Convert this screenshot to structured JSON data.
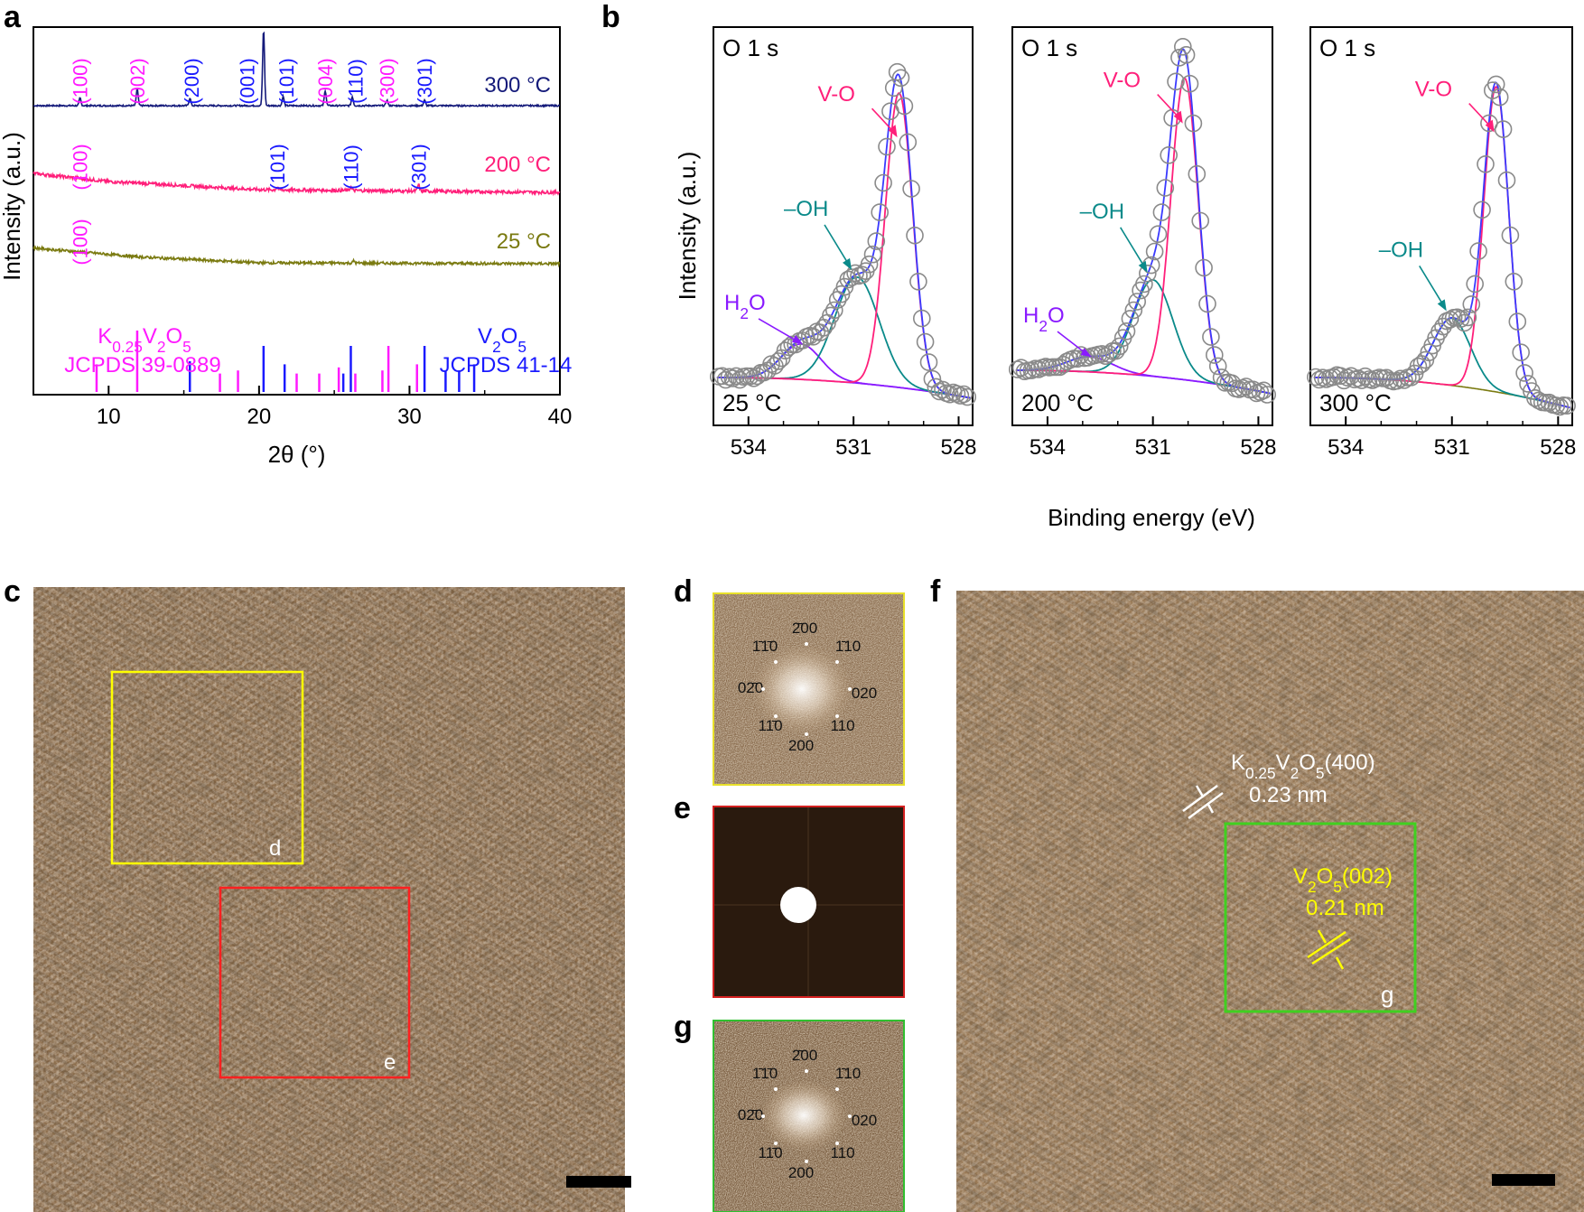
{
  "panels": {
    "a": "a",
    "b": "b",
    "c": "c",
    "d": "d",
    "e": "e",
    "f": "f",
    "g": "g"
  },
  "colors": {
    "magenta": "#ff1aff",
    "blue": "#1a1aff",
    "navy": "#141a7a",
    "pink": "#ff1f7a",
    "olive": "#7a7a10",
    "teal": "#0a8a8a",
    "violet": "#8a1aff",
    "hrtem": "#8a6b4a"
  },
  "chart_data": [
    {
      "id": "a",
      "type": "line",
      "xlabel": "2θ (°)",
      "ylabel": "Intensity (a.u.)",
      "xlim": [
        5,
        40
      ],
      "xticks": [
        10,
        20,
        30,
        40
      ],
      "series": [
        {
          "name": "300 °C",
          "color": "#141a7a",
          "offset": 0,
          "baseline": [
            [
              5,
              0.0
            ],
            [
              40,
              0.0
            ]
          ],
          "peaks": [
            [
              8.1,
              0.1
            ],
            [
              11.9,
              0.22
            ],
            [
              15.4,
              0.1
            ],
            [
              20.3,
              1.0
            ],
            [
              21.6,
              0.12
            ],
            [
              24.4,
              0.2
            ],
            [
              26.2,
              0.12
            ],
            [
              28.5,
              0.07
            ],
            [
              31.0,
              0.07
            ]
          ]
        },
        {
          "name": "200 °C",
          "color": "#ff1f7a",
          "offset": 1,
          "baseline": [
            [
              5,
              0.35
            ],
            [
              10,
              0.2
            ],
            [
              20,
              0.05
            ],
            [
              40,
              0.0
            ]
          ],
          "peaks": [
            [
              21.2,
              0.05
            ],
            [
              26.1,
              0.06
            ],
            [
              30.6,
              0.12
            ]
          ]
        },
        {
          "name": "25 °C",
          "color": "#7a7a10",
          "offset": 2,
          "baseline": [
            [
              5,
              0.35
            ],
            [
              12,
              0.15
            ],
            [
              20,
              0.02
            ],
            [
              40,
              0.0
            ]
          ],
          "peaks": [
            [
              26.3,
              0.05
            ]
          ]
        }
      ],
      "reference": {
        "K0.25V2O5": {
          "label_line1": "K0.25V2O5",
          "label_line2": "JCPDS 39-0889",
          "color": "#ff1aff",
          "lines": [
            [
              9.2,
              0.45
            ],
            [
              11.9,
              1.0
            ],
            [
              17.4,
              0.3
            ],
            [
              18.6,
              0.35
            ],
            [
              22.5,
              0.3
            ],
            [
              24.0,
              0.3
            ],
            [
              25.3,
              0.4
            ],
            [
              26.4,
              0.3
            ],
            [
              28.2,
              0.35
            ],
            [
              28.6,
              0.75
            ],
            [
              30.5,
              0.45
            ]
          ]
        },
        "V2O5": {
          "label_line1": "V2O5",
          "label_line2": "JCPDS 41-14",
          "color": "#1a1aff",
          "lines": [
            [
              15.4,
              0.5
            ],
            [
              20.3,
              0.75
            ],
            [
              21.7,
              0.45
            ],
            [
              25.6,
              0.3
            ],
            [
              26.1,
              0.75
            ],
            [
              31.0,
              0.75
            ],
            [
              32.4,
              0.35
            ],
            [
              33.3,
              0.35
            ],
            [
              34.3,
              0.45
            ]
          ]
        }
      },
      "peak_labels": [
        {
          "row": 0,
          "x": 8.1,
          "text": "(100)",
          "color": "#ff1aff"
        },
        {
          "row": 0,
          "x": 11.9,
          "text": "(002)",
          "color": "#ff1aff"
        },
        {
          "row": 0,
          "x": 15.5,
          "text": "(200)",
          "color": "#1a1aff"
        },
        {
          "row": 0,
          "x": 19.2,
          "text": "(001)",
          "color": "#1a1aff"
        },
        {
          "row": 0,
          "x": 21.8,
          "text": "(101)",
          "color": "#1a1aff"
        },
        {
          "row": 0,
          "x": 24.4,
          "text": "(004)",
          "color": "#ff1aff"
        },
        {
          "row": 0,
          "x": 26.4,
          "text": "(110)",
          "color": "#1a1aff"
        },
        {
          "row": 0,
          "x": 28.5,
          "text": "(300)",
          "color": "#ff1aff"
        },
        {
          "row": 0,
          "x": 31.0,
          "text": "(301)",
          "color": "#1a1aff"
        },
        {
          "row": 1,
          "x": 8.1,
          "text": "(100)",
          "color": "#ff1aff"
        },
        {
          "row": 1,
          "x": 21.2,
          "text": "(101)",
          "color": "#1a1aff"
        },
        {
          "row": 1,
          "x": 26.1,
          "text": "(110)",
          "color": "#1a1aff"
        },
        {
          "row": 1,
          "x": 30.6,
          "text": "(301)",
          "color": "#1a1aff"
        },
        {
          "row": 2,
          "x": 8.1,
          "text": "(100)",
          "color": "#ff1aff"
        }
      ]
    },
    {
      "id": "b",
      "type": "line",
      "xlabel": "Binding energy (eV)",
      "ylabel": "Intensity (a.u.)",
      "xlim": [
        535,
        527.6
      ],
      "xticks": [
        534,
        531,
        528
      ],
      "subpanels": [
        {
          "title": "O 1 s",
          "temp": "25 °C",
          "voh": {
            "center": 529.7,
            "amp": 1.0,
            "width": 0.55
          },
          "oh": {
            "center": 530.9,
            "amp": 0.36,
            "width": 0.9
          },
          "h2o": {
            "center": 532.5,
            "amp": 0.12,
            "width": 0.8
          },
          "labels": {
            "vo": "V-O",
            "oh": "–OH",
            "h2o": "H2O"
          }
        },
        {
          "title": "O 1 s",
          "temp": "200 °C",
          "voh": {
            "center": 530.1,
            "amp": 1.0,
            "width": 0.55
          },
          "oh": {
            "center": 531.0,
            "amp": 0.32,
            "width": 0.8
          },
          "h2o": {
            "center": 532.8,
            "amp": 0.05,
            "width": 0.9
          },
          "labels": {
            "vo": "V-O",
            "oh": "–OH",
            "h2o": "H2O"
          }
        },
        {
          "title": "O 1 s",
          "temp": "300 °C",
          "voh": {
            "center": 529.75,
            "amp": 1.0,
            "width": 0.5
          },
          "oh": {
            "center": 531.0,
            "amp": 0.22,
            "width": 0.75
          },
          "h2o": null,
          "labels": {
            "vo": "V-O",
            "oh": "–OH",
            "h2o": ""
          }
        }
      ]
    }
  ],
  "hrtem": {
    "box_d": "d",
    "box_e": "e",
    "box_g": "g",
    "fft_d": [
      "2̄00",
      "1̄1̄0",
      "1̄10",
      "02̄0",
      "020",
      "11̄0",
      "110",
      "200"
    ],
    "fft_g": [
      "2̄00",
      "1̄1̄0",
      "1̄10",
      "02̄0",
      "020",
      "11̄0",
      "110",
      "200"
    ],
    "f_label1_main": "K0.25V2O5(400)",
    "f_label1_d": "0.23 nm",
    "f_label2_main": "V2O5(002)",
    "f_label2_d": "0.21 nm"
  }
}
